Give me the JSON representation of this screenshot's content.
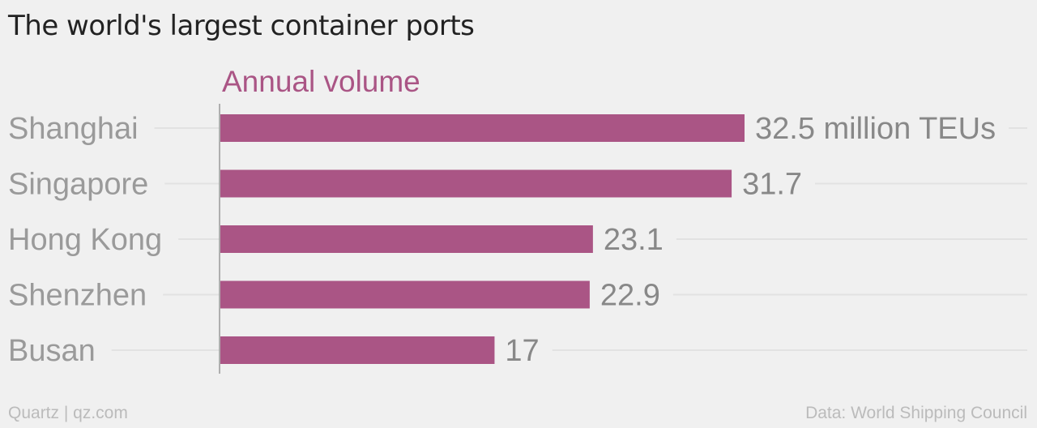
{
  "title": "The world's largest container ports",
  "footer": {
    "left": "Quartz | qz.com",
    "right": "Data: World Shipping Council"
  },
  "colors": {
    "bar": "#aa5585",
    "subtitle": "#aa5585",
    "category_label": "#9a9a9a",
    "value_label": "#888888",
    "gridline": "#e2e2e2",
    "axis": "#999999"
  },
  "chart_data": {
    "type": "bar",
    "orientation": "horizontal",
    "subtitle": "Annual volume",
    "categories": [
      "Shanghai",
      "Singapore",
      "Hong Kong",
      "Shenzhen",
      "Busan"
    ],
    "values": [
      32.5,
      31.7,
      23.1,
      22.9,
      17
    ],
    "value_labels": [
      "32.5 million TEUs",
      "31.7",
      "23.1",
      "22.9",
      "17"
    ],
    "unit": "million TEUs",
    "xlim": [
      0,
      32.5
    ],
    "grid": true,
    "legend": "none"
  }
}
